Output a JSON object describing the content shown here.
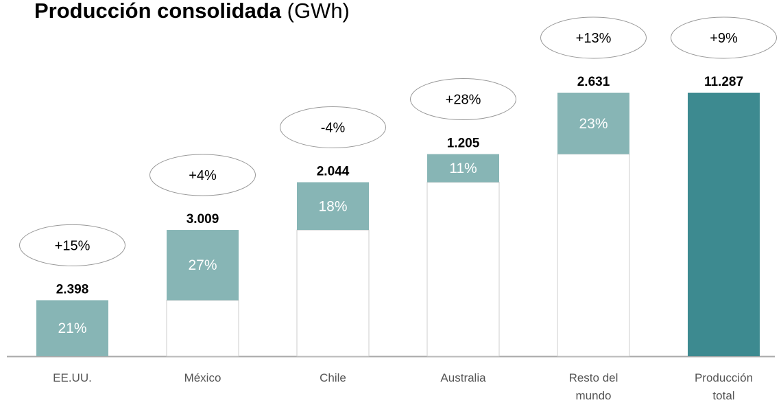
{
  "chart_data": {
    "type": "waterfall",
    "title": "Producción consolidada",
    "unit": "(GWh)",
    "categories": [
      "EE.UU.",
      "México",
      "Chile",
      "Australia",
      "Resto del mundo",
      "Producción total"
    ],
    "values": [
      2398,
      3009,
      2044,
      1205,
      2631,
      11287
    ],
    "value_labels": [
      "2.398",
      "3.009",
      "2.044",
      "1.205",
      "2.631",
      "11.287"
    ],
    "share_labels": [
      "21%",
      "27%",
      "18%",
      "11%",
      "23%"
    ],
    "growth_labels": [
      "+15%",
      "+4%",
      "-4%",
      "+28%",
      "+13%",
      "+9%"
    ],
    "color": "#87b5b5",
    "total_color": "#3d8a90"
  }
}
